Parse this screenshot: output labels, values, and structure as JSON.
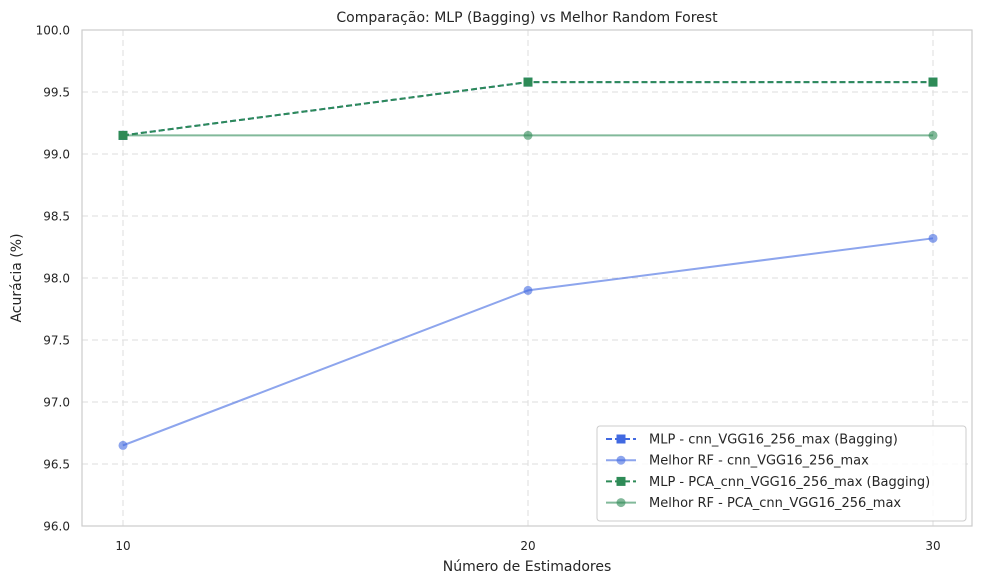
{
  "chart_data": {
    "type": "line",
    "title": "Comparação: MLP (Bagging) vs Melhor Random Forest",
    "xlabel": "Número de Estimadores",
    "ylabel": "Acurácia (%)",
    "x": [
      10,
      20,
      30
    ],
    "xticks": [
      "10",
      "20",
      "30"
    ],
    "ylim": [
      96.0,
      100.0
    ],
    "yticks": [
      "96.0",
      "96.5",
      "97.0",
      "97.5",
      "98.0",
      "98.5",
      "99.0",
      "99.5",
      "100.0"
    ],
    "grid": true,
    "legend_position": "lower-right",
    "series": [
      {
        "name": "MLP - cnn_VGG16_256_max (Bagging)",
        "values": [
          99.15,
          99.58,
          99.58
        ],
        "color": "#4169e1",
        "linestyle": "dashed",
        "marker": "square"
      },
      {
        "name": "Melhor RF - cnn_VGG16_256_max",
        "values": [
          96.65,
          97.9,
          98.32
        ],
        "color": "#4169e1",
        "linestyle": "solid",
        "marker": "circle",
        "alpha": 0.6
      },
      {
        "name": "MLP - PCA_cnn_VGG16_256_max (Bagging)",
        "values": [
          99.15,
          99.58,
          99.58
        ],
        "color": "#2e8b57",
        "linestyle": "dashed",
        "marker": "square"
      },
      {
        "name": "Melhor RF - PCA_cnn_VGG16_256_max",
        "values": [
          99.15,
          99.15,
          99.15
        ],
        "color": "#2e8b57",
        "linestyle": "solid",
        "marker": "circle",
        "alpha": 0.6
      }
    ]
  }
}
